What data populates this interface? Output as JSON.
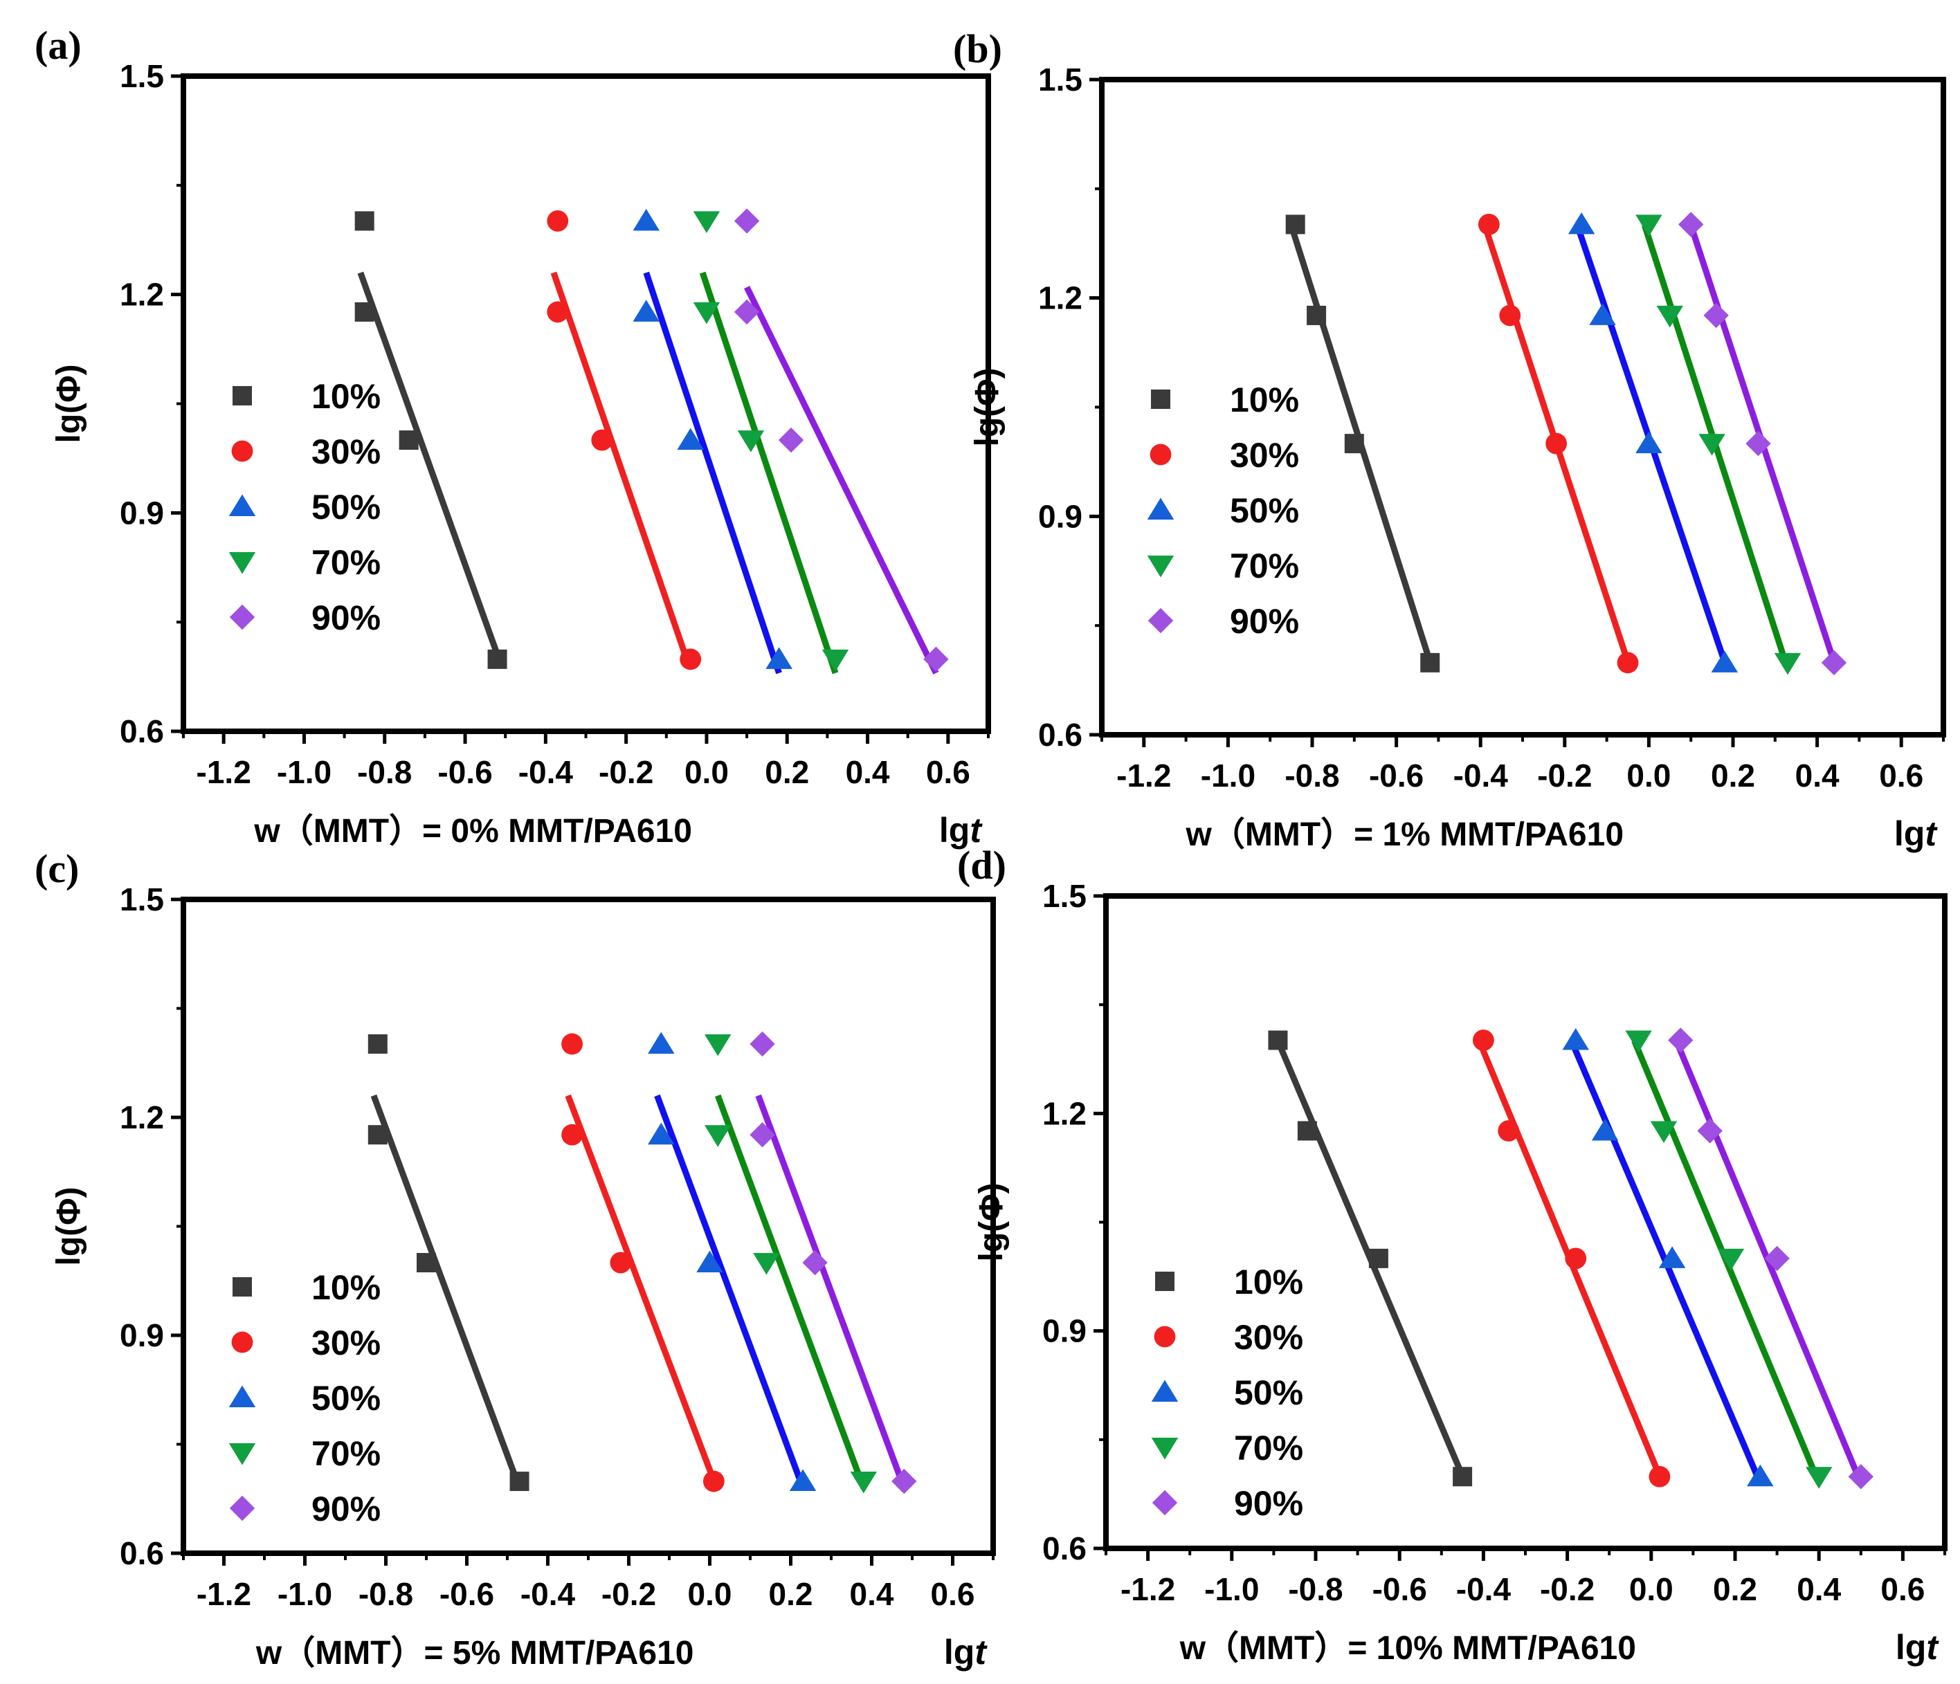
{
  "figure": {
    "colors": {
      "10%": "#3a3a3a",
      "30%": "#f02020",
      "50%": "#1560d8",
      "70%": "#11a040",
      "90%": "#a050e0",
      "fit_50%": "#1010f0",
      "fit_70%": "#0a8a10",
      "fit_90%": "#8d1ee0"
    }
  },
  "chart_data": [
    {
      "panel_label": "(a)",
      "type": "scatter",
      "caption": "w（MMT）= 0% MMT/PA610",
      "xlabel": "lg",
      "xlabel_italic": "t",
      "ylabel": "lg(Φ)",
      "xlim": [
        -1.3,
        0.7
      ],
      "ylim": [
        0.6,
        1.5
      ],
      "xticks": [
        -1.2,
        -1.0,
        -0.8,
        -0.6,
        -0.4,
        -0.2,
        0.0,
        0.2,
        0.4,
        0.6
      ],
      "xtick_labels": [
        "-1.2",
        "-1.0",
        "-0.8",
        "-0.6",
        "-0.4",
        "-0.2",
        "0.0",
        "0.2",
        "0.4",
        "0.6"
      ],
      "yticks": [
        0.6,
        0.9,
        1.2,
        1.5
      ],
      "ytick_labels": [
        "0.6",
        "0.9",
        "1.2",
        "1.5"
      ],
      "legend": [
        "10%",
        "30%",
        "50%",
        "70%",
        "90%"
      ],
      "series": [
        {
          "name": "10%",
          "marker": "square",
          "x": [
            -0.85,
            -0.85,
            -0.74,
            -0.52
          ],
          "y": [
            1.301,
            1.176,
            1.0,
            0.699
          ],
          "fit": [
            [
              -0.86,
              1.23
            ],
            [
              -0.51,
              0.69
            ]
          ]
        },
        {
          "name": "30%",
          "marker": "circle",
          "x": [
            -0.37,
            -0.37,
            -0.26,
            -0.04
          ],
          "y": [
            1.301,
            1.176,
            1.0,
            0.699
          ],
          "fit": [
            [
              -0.38,
              1.23
            ],
            [
              -0.05,
              0.7
            ]
          ]
        },
        {
          "name": "50%",
          "marker": "triangle-up",
          "x": [
            -0.15,
            -0.15,
            -0.04,
            0.18
          ],
          "y": [
            1.301,
            1.176,
            1.0,
            0.699
          ],
          "fit": [
            [
              -0.15,
              1.23
            ],
            [
              0.18,
              0.68
            ]
          ]
        },
        {
          "name": "70%",
          "marker": "triangle-down",
          "x": [
            0.0,
            0.0,
            0.11,
            0.32
          ],
          "y": [
            1.301,
            1.176,
            1.0,
            0.699
          ],
          "fit": [
            [
              -0.01,
              1.23
            ],
            [
              0.32,
              0.68
            ]
          ]
        },
        {
          "name": "90%",
          "marker": "diamond",
          "x": [
            0.1,
            0.1,
            0.21,
            0.57
          ],
          "y": [
            1.301,
            1.176,
            1.0,
            0.699
          ],
          "fit": [
            [
              0.1,
              1.21
            ],
            [
              0.57,
              0.68
            ]
          ]
        }
      ]
    },
    {
      "panel_label": "(b)",
      "type": "scatter",
      "caption": "w（MMT）= 1% MMT/PA610",
      "xlabel": "lg",
      "xlabel_italic": "t",
      "ylabel": "lg(Φ)",
      "xlim": [
        -1.3,
        0.7
      ],
      "ylim": [
        0.6,
        1.5
      ],
      "xticks": [
        -1.2,
        -1.0,
        -0.8,
        -0.6,
        -0.4,
        -0.2,
        0.0,
        0.2,
        0.4,
        0.6
      ],
      "xtick_labels": [
        "-1.2",
        "-1.0",
        "-0.8",
        "-0.6",
        "-0.4",
        "-0.2",
        "0.0",
        "0.2",
        "0.4",
        "0.6"
      ],
      "yticks": [
        0.6,
        0.9,
        1.2,
        1.5
      ],
      "ytick_labels": [
        "0.6",
        "0.9",
        "1.2",
        "1.5"
      ],
      "legend": [
        "10%",
        "30%",
        "50%",
        "70%",
        "90%"
      ],
      "series": [
        {
          "name": "10%",
          "marker": "square",
          "x": [
            -0.84,
            -0.79,
            -0.7,
            -0.52
          ],
          "y": [
            1.301,
            1.176,
            1.0,
            0.699
          ],
          "fit": [
            [
              -0.85,
              1.3
            ],
            [
              -0.52,
              0.7
            ]
          ]
        },
        {
          "name": "30%",
          "marker": "circle",
          "x": [
            -0.38,
            -0.33,
            -0.22,
            -0.05
          ],
          "y": [
            1.301,
            1.176,
            1.0,
            0.699
          ],
          "fit": [
            [
              -0.39,
              1.3
            ],
            [
              -0.05,
              0.7
            ]
          ]
        },
        {
          "name": "50%",
          "marker": "triangle-up",
          "x": [
            -0.16,
            -0.11,
            0.0,
            0.18
          ],
          "y": [
            1.301,
            1.176,
            1.0,
            0.699
          ],
          "fit": [
            [
              -0.17,
              1.3
            ],
            [
              0.18,
              0.7
            ]
          ]
        },
        {
          "name": "70%",
          "marker": "triangle-down",
          "x": [
            0.0,
            0.05,
            0.15,
            0.33
          ],
          "y": [
            1.301,
            1.176,
            1.0,
            0.699
          ],
          "fit": [
            [
              -0.01,
              1.3
            ],
            [
              0.33,
              0.69
            ]
          ]
        },
        {
          "name": "90%",
          "marker": "diamond",
          "x": [
            0.1,
            0.16,
            0.26,
            0.44
          ],
          "y": [
            1.301,
            1.176,
            1.0,
            0.699
          ],
          "fit": [
            [
              0.1,
              1.3
            ],
            [
              0.44,
              0.7
            ]
          ]
        }
      ]
    },
    {
      "panel_label": "(c)",
      "type": "scatter",
      "caption": "w（MMT）= 5% MMT/PA610",
      "xlabel": "lg",
      "xlabel_italic": "t",
      "ylabel": "lg(Φ)",
      "xlim": [
        -1.3,
        0.7
      ],
      "ylim": [
        0.6,
        1.5
      ],
      "xticks": [
        -1.2,
        -1.0,
        -0.8,
        -0.6,
        -0.4,
        -0.2,
        0.0,
        0.2,
        0.4,
        0.6
      ],
      "xtick_labels": [
        "-1.2",
        "-1.0",
        "-0.8",
        "-0.6",
        "-0.4",
        "-0.2",
        "0.0",
        "0.2",
        "0.4",
        "0.6"
      ],
      "yticks": [
        0.6,
        0.9,
        1.2,
        1.5
      ],
      "ytick_labels": [
        "0.6",
        "0.9",
        "1.2",
        "1.5"
      ],
      "legend": [
        "10%",
        "30%",
        "50%",
        "70%",
        "90%"
      ],
      "series": [
        {
          "name": "10%",
          "marker": "square",
          "x": [
            -0.82,
            -0.82,
            -0.7,
            -0.47
          ],
          "y": [
            1.301,
            1.176,
            1.0,
            0.699
          ],
          "fit": [
            [
              -0.83,
              1.23
            ],
            [
              -0.47,
              0.69
            ]
          ]
        },
        {
          "name": "30%",
          "marker": "circle",
          "x": [
            -0.34,
            -0.34,
            -0.22,
            0.01
          ],
          "y": [
            1.301,
            1.176,
            1.0,
            0.699
          ],
          "fit": [
            [
              -0.35,
              1.23
            ],
            [
              0.01,
              0.7
            ]
          ]
        },
        {
          "name": "50%",
          "marker": "triangle-up",
          "x": [
            -0.12,
            -0.12,
            0.0,
            0.23
          ],
          "y": [
            1.301,
            1.176,
            1.0,
            0.699
          ],
          "fit": [
            [
              -0.13,
              1.23
            ],
            [
              0.23,
              0.69
            ]
          ]
        },
        {
          "name": "70%",
          "marker": "triangle-down",
          "x": [
            0.02,
            0.02,
            0.14,
            0.38
          ],
          "y": [
            1.301,
            1.176,
            1.0,
            0.699
          ],
          "fit": [
            [
              0.02,
              1.23
            ],
            [
              0.38,
              0.69
            ]
          ]
        },
        {
          "name": "90%",
          "marker": "diamond",
          "x": [
            0.13,
            0.13,
            0.26,
            0.48
          ],
          "y": [
            1.301,
            1.176,
            1.0,
            0.699
          ],
          "fit": [
            [
              0.12,
              1.23
            ],
            [
              0.48,
              0.69
            ]
          ]
        }
      ]
    },
    {
      "panel_label": "(d)",
      "type": "scatter",
      "caption": "w（MMT）= 10% MMT/PA610",
      "xlabel": "lg",
      "xlabel_italic": "t",
      "ylabel": "lg(Φ)",
      "xlim": [
        -1.3,
        0.7
      ],
      "ylim": [
        0.6,
        1.5
      ],
      "xticks": [
        -1.2,
        -1.0,
        -0.8,
        -0.6,
        -0.4,
        -0.2,
        0.0,
        0.2,
        0.4,
        0.6
      ],
      "xtick_labels": [
        "-1.2",
        "-1.0",
        "-0.8",
        "-0.6",
        "-0.4",
        "-0.2",
        "0.0",
        "0.2",
        "0.4",
        "0.6"
      ],
      "yticks": [
        0.6,
        0.9,
        1.2,
        1.5
      ],
      "ytick_labels": [
        "0.6",
        "0.9",
        "1.2",
        "1.5"
      ],
      "legend": [
        "10%",
        "30%",
        "50%",
        "70%",
        "90%"
      ],
      "series": [
        {
          "name": "10%",
          "marker": "square",
          "x": [
            -0.89,
            -0.82,
            -0.65,
            -0.45
          ],
          "y": [
            1.301,
            1.176,
            1.0,
            0.699
          ],
          "fit": [
            [
              -0.89,
              1.3
            ],
            [
              -0.45,
              0.7
            ]
          ]
        },
        {
          "name": "30%",
          "marker": "circle",
          "x": [
            -0.4,
            -0.34,
            -0.18,
            0.02
          ],
          "y": [
            1.301,
            1.176,
            1.0,
            0.699
          ],
          "fit": [
            [
              -0.41,
              1.3
            ],
            [
              0.02,
              0.7
            ]
          ]
        },
        {
          "name": "50%",
          "marker": "triangle-up",
          "x": [
            -0.18,
            -0.11,
            0.05,
            0.26
          ],
          "y": [
            1.301,
            1.176,
            1.0,
            0.699
          ],
          "fit": [
            [
              -0.19,
              1.3
            ],
            [
              0.26,
              0.69
            ]
          ]
        },
        {
          "name": "70%",
          "marker": "triangle-down",
          "x": [
            -0.03,
            0.03,
            0.19,
            0.4
          ],
          "y": [
            1.301,
            1.176,
            1.0,
            0.699
          ],
          "fit": [
            [
              -0.04,
              1.3
            ],
            [
              0.4,
              0.69
            ]
          ]
        },
        {
          "name": "90%",
          "marker": "diamond",
          "x": [
            0.07,
            0.14,
            0.3,
            0.5
          ],
          "y": [
            1.301,
            1.176,
            1.0,
            0.699
          ],
          "fit": [
            [
              0.06,
              1.3
            ],
            [
              0.5,
              0.69
            ]
          ]
        }
      ]
    }
  ]
}
